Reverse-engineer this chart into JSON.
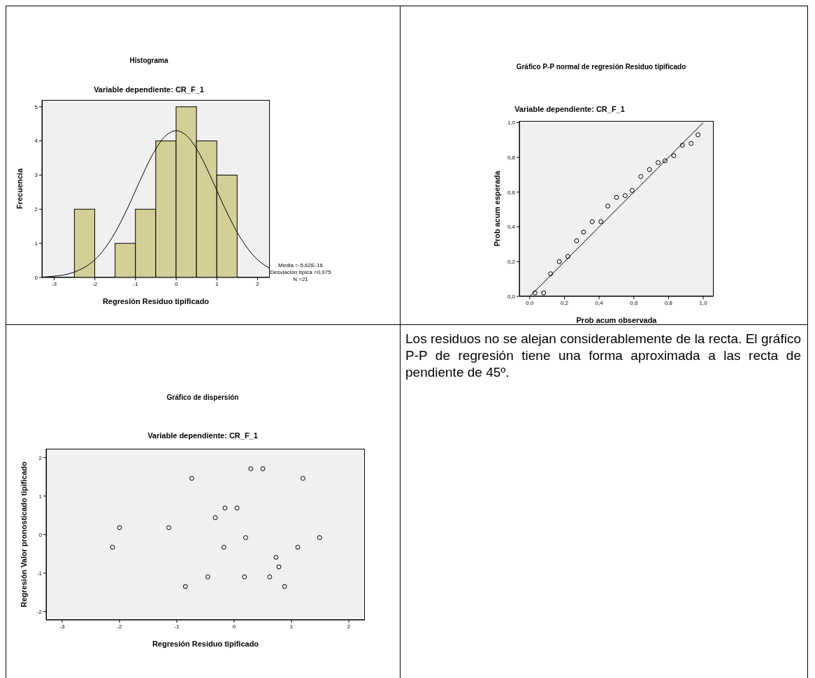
{
  "chart_data": [
    {
      "type": "histogram",
      "title": "Histograma",
      "subtitle": "Variable dependiente: CR_F_1",
      "xlabel": "Regresión Residuo tipificado",
      "ylabel": "Frecuencia",
      "bins": [
        -2.5,
        -2,
        -1.5,
        -1,
        -0.5,
        0,
        0.5,
        1,
        1.5
      ],
      "values": [
        2,
        0,
        1,
        2,
        4,
        5,
        4,
        3
      ],
      "color": "#d3cf97",
      "xlim": [
        -3.3,
        2.3
      ],
      "ylim": [
        0,
        5.2
      ],
      "xticks": [
        -3,
        -2,
        -1,
        0,
        1,
        2
      ],
      "yticks": [
        0,
        1,
        2,
        3,
        4,
        5
      ],
      "series": [
        {
          "type": "line",
          "color": "#000000",
          "x": [
            -3.3,
            -3.0,
            -2.7,
            -2.4,
            -2.1,
            -1.8,
            -1.5,
            -1.2,
            -0.9,
            -0.6,
            -0.3,
            0,
            0.3,
            0.6,
            0.9,
            1.2,
            1.5,
            1.8,
            2.1,
            2.3
          ],
          "values": [
            0.01,
            0.04,
            0.09,
            0.21,
            0.42,
            0.78,
            1.32,
            2.02,
            2.81,
            3.56,
            4.1,
            4.3,
            4.1,
            3.56,
            2.81,
            2.02,
            1.32,
            0.78,
            0.42,
            0.27
          ]
        }
      ],
      "annotations": [
        "Media =-5,62E-16",
        "Desviación típica =0,975",
        "N =21"
      ]
    },
    {
      "type": "scatter",
      "title": "Gráfico P-P normal de regresión Residuo tipificado",
      "subtitle": "Variable dependiente: CR_F_1",
      "xlabel": "Prob acum observada",
      "ylabel": "Prob acum esperada",
      "xlim": [
        -0.06,
        1.06
      ],
      "ylim": [
        0,
        1.01
      ],
      "xticks": [
        {
          "value": 0,
          "label": "0,0"
        },
        {
          "value": 0.2,
          "label": "0,2"
        },
        {
          "value": 0.4,
          "label": "0,4"
        },
        {
          "value": 0.6,
          "label": "0,6"
        },
        {
          "value": 0.8,
          "label": "0,8"
        },
        {
          "value": 1,
          "label": "1,0"
        }
      ],
      "yticks": [
        {
          "value": 0,
          "label": "0,0"
        },
        {
          "value": 0.2,
          "label": "0,2"
        },
        {
          "value": 0.4,
          "label": "0,4"
        },
        {
          "value": 0.6,
          "label": "0,6"
        },
        {
          "value": 0.8,
          "label": "0,8"
        },
        {
          "value": 1,
          "label": "1,0"
        }
      ],
      "series": [
        {
          "type": "scatter",
          "marker": "circle",
          "color": "#000000",
          "x": [
            0.03,
            0.08,
            0.12,
            0.17,
            0.22,
            0.27,
            0.31,
            0.36,
            0.41,
            0.45,
            0.5,
            0.55,
            0.59,
            0.64,
            0.69,
            0.74,
            0.78,
            0.83,
            0.88,
            0.93,
            0.97
          ],
          "values": [
            0.02,
            0.02,
            0.13,
            0.2,
            0.23,
            0.32,
            0.37,
            0.43,
            0.43,
            0.52,
            0.57,
            0.58,
            0.61,
            0.69,
            0.73,
            0.77,
            0.78,
            0.81,
            0.87,
            0.88,
            0.93
          ]
        },
        {
          "type": "line",
          "color": "#000000",
          "x": [
            0,
            1
          ],
          "values": [
            0,
            1
          ]
        }
      ]
    },
    {
      "type": "scatter",
      "title": "Gráfico de dispersión",
      "subtitle": "Variable dependiente: CR_F_1",
      "xlabel": "Regresión Residuo tipificado",
      "ylabel": "Regresión Valor pronosticado tipificado",
      "marker": "circle",
      "color": "#000000",
      "xlim": [
        -3.28,
        2.28
      ],
      "ylim": [
        -2.22,
        2.23
      ],
      "xticks": [
        -3,
        -2,
        -1,
        0,
        1,
        2
      ],
      "yticks": [
        -2,
        -1,
        0,
        1,
        2
      ],
      "x": [
        -2.12,
        -2.0,
        -1.14,
        -0.74,
        -0.85,
        -0.46,
        -0.33,
        -0.16,
        -0.18,
        0.05,
        0.29,
        0.5,
        0.2,
        0.18,
        0.62,
        0.73,
        0.78,
        0.88,
        1.11,
        1.2,
        1.49
      ],
      "values": [
        -0.33,
        0.18,
        0.18,
        1.46,
        -1.35,
        -1.1,
        0.44,
        0.69,
        -0.33,
        0.69,
        1.71,
        1.71,
        -0.08,
        -1.1,
        -1.1,
        -0.59,
        -0.84,
        -1.35,
        -0.33,
        1.46,
        -0.08
      ]
    },
    {
      "type": "other",
      "annotations": [
        "Los residuos no se alejan considerablemente de la recta. El gráfico P-P de regresión tiene una forma aproximada a las recta de pendiente de 45º."
      ]
    }
  ]
}
